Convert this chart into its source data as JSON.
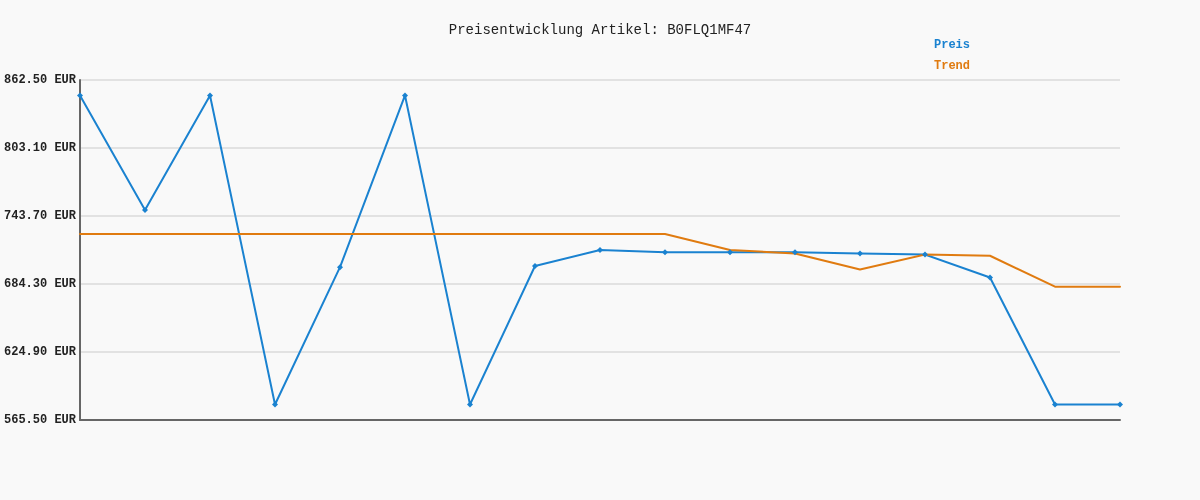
{
  "chart_data": {
    "type": "line",
    "title": "Preisentwicklung Artikel: B0FLQ1MF47",
    "categories": [
      null,
      null,
      null,
      null,
      null,
      null,
      null,
      null,
      null,
      null,
      null,
      null,
      null,
      null,
      null,
      null,
      null
    ],
    "series": [
      {
        "name": "Preis",
        "color": "#1a82d0",
        "marker": "diamond",
        "values": [
          849,
          749,
          849,
          579,
          699,
          849,
          579,
          700,
          714,
          712,
          712,
          712,
          711,
          710,
          690,
          579,
          579
        ]
      },
      {
        "name": "Trend",
        "color": "#e07b10",
        "marker": "none",
        "values": [
          728,
          728,
          728,
          728,
          728,
          728,
          728,
          728,
          728,
          728,
          714,
          711,
          697,
          710,
          709,
          682,
          682
        ]
      }
    ],
    "ylim": [
      565.5,
      862.5
    ],
    "yticks": [
      {
        "value": 565.5,
        "label": "565.50 EUR"
      },
      {
        "value": 624.9,
        "label": "624.90 EUR"
      },
      {
        "value": 684.3,
        "label": "684.30 EUR"
      },
      {
        "value": 743.7,
        "label": "743.70 EUR"
      },
      {
        "value": 803.1,
        "label": "803.10 EUR"
      },
      {
        "value": 862.5,
        "label": "862.50 EUR"
      }
    ],
    "grid": "y",
    "legend": "top right",
    "line_style": "solid"
  }
}
